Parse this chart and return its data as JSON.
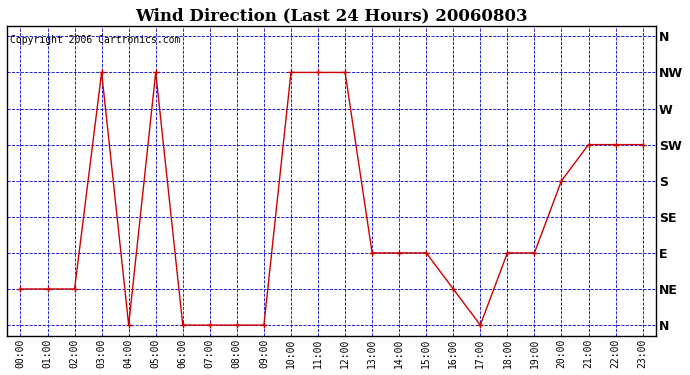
{
  "title": "Wind Direction (Last 24 Hours) 20060803",
  "copyright": "Copyright 2006 Cartronics.com",
  "x_labels": [
    "00:00",
    "01:00",
    "02:00",
    "03:00",
    "04:00",
    "05:00",
    "06:00",
    "07:00",
    "08:00",
    "09:00",
    "10:00",
    "11:00",
    "12:00",
    "13:00",
    "14:00",
    "15:00",
    "16:00",
    "17:00",
    "18:00",
    "19:00",
    "20:00",
    "21:00",
    "22:00",
    "23:00"
  ],
  "y_labels": [
    "N",
    "NE",
    "E",
    "SE",
    "S",
    "SW",
    "W",
    "NW",
    "N"
  ],
  "y_values": [
    0,
    1,
    2,
    3,
    4,
    5,
    6,
    7,
    8
  ],
  "hours": [
    0,
    1,
    2,
    3,
    4,
    5,
    6,
    7,
    8,
    9,
    10,
    11,
    12,
    13,
    14,
    15,
    16,
    17,
    18,
    19,
    20,
    21,
    22,
    23
  ],
  "wind_values": [
    1,
    1,
    1,
    7,
    0,
    7,
    0,
    0,
    0,
    0,
    7,
    7,
    7,
    2,
    2,
    2,
    1,
    0,
    2,
    2,
    4,
    5,
    5,
    5
  ],
  "line_color": "#cc0000",
  "marker_color": "#cc0000",
  "grid_color": "#0000cc",
  "background_color": "#ffffff",
  "plot_bg_color": "#ffffff",
  "title_fontsize": 12,
  "copyright_fontsize": 7,
  "tick_fontsize": 8
}
